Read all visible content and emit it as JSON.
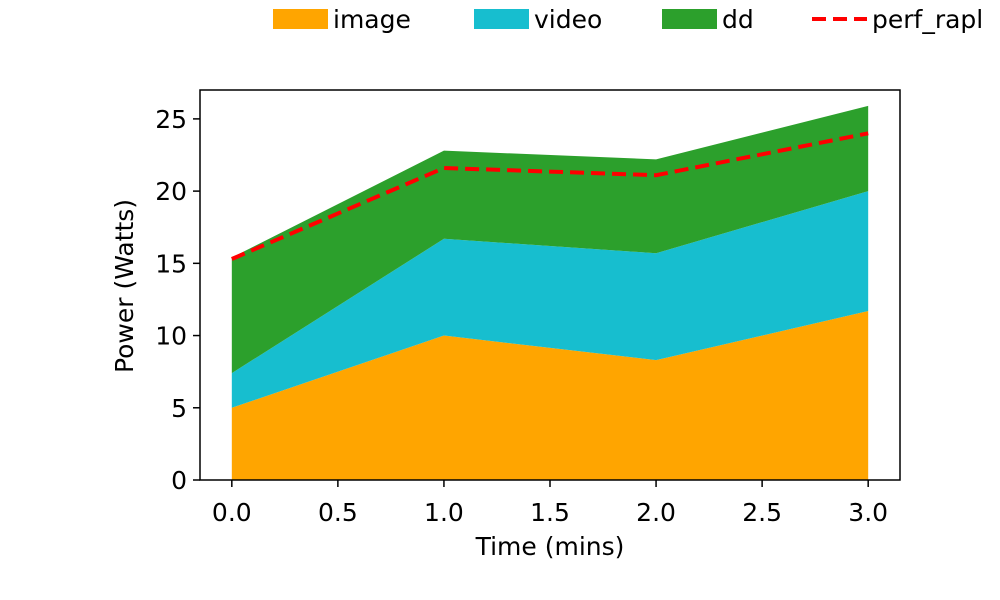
{
  "chart_data": {
    "type": "area",
    "stacked": true,
    "x": [
      0,
      1,
      2,
      3
    ],
    "xlabel": "Time (mins)",
    "ylabel": "Power (Watts)",
    "xlim": [
      -0.15,
      3.15
    ],
    "ylim": [
      0,
      27
    ],
    "xticks": [
      0,
      0.5,
      1,
      1.5,
      2,
      2.5,
      3
    ],
    "xtick_labels": [
      "0.0",
      "0.5",
      "1.0",
      "1.5",
      "2.0",
      "2.5",
      "3.0"
    ],
    "yticks": [
      0,
      5,
      10,
      15,
      20,
      25
    ],
    "ytick_labels": [
      "0",
      "5",
      "10",
      "15",
      "20",
      "25"
    ],
    "grid": false,
    "legend_position": "top",
    "series": [
      {
        "name": "image",
        "values": [
          5.0,
          10.0,
          8.3,
          11.7
        ],
        "color": "#FFA500"
      },
      {
        "name": "video",
        "values": [
          2.4,
          6.7,
          7.4,
          8.3
        ],
        "color": "#17BECF"
      },
      {
        "name": "dd",
        "values": [
          8.0,
          6.1,
          6.5,
          5.9
        ],
        "color": "#2CA02C"
      }
    ],
    "lines": [
      {
        "name": "perf_rapl",
        "values": [
          15.3,
          21.6,
          21.1,
          24.0
        ],
        "color": "#FF0000",
        "style": "dashed"
      }
    ]
  }
}
